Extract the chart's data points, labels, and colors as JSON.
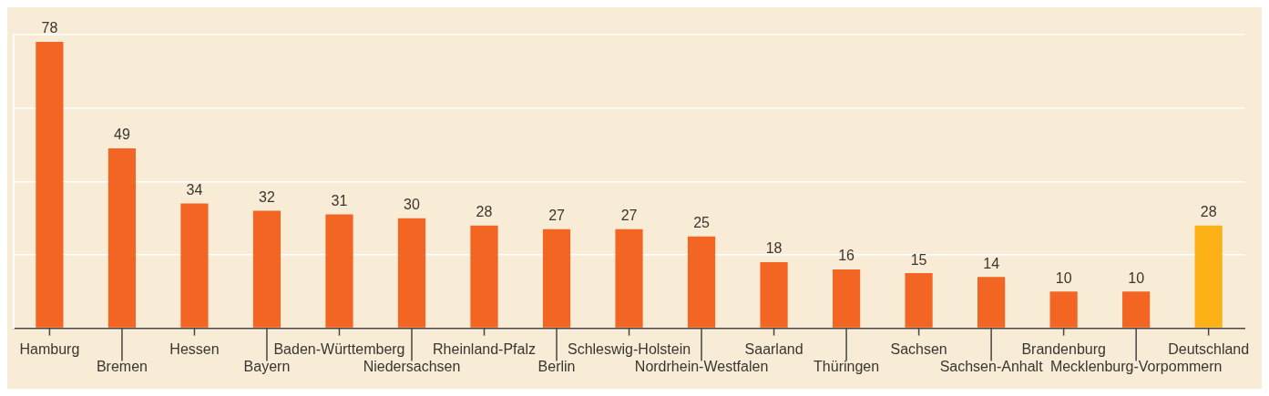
{
  "chart_data": {
    "type": "bar",
    "categories": [
      "Hamburg",
      "Bremen",
      "Hessen",
      "Bayern",
      "Baden-Württemberg",
      "Niedersachsen",
      "Rheinland-Pfalz",
      "Berlin",
      "Schleswig-Holstein",
      "Nordrhein-Westfalen",
      "Saarland",
      "Thüringen",
      "Sachsen",
      "Sachsen-Anhalt",
      "Brandenburg",
      "Mecklenburg-Vorpommern",
      "Deutschland"
    ],
    "values": [
      78,
      49,
      34,
      32,
      31,
      30,
      28,
      27,
      27,
      25,
      18,
      16,
      15,
      14,
      10,
      10,
      28
    ],
    "colors": [
      "#f26522",
      "#f26522",
      "#f26522",
      "#f26522",
      "#f26522",
      "#f26522",
      "#f26522",
      "#f26522",
      "#f26522",
      "#f26522",
      "#f26522",
      "#f26522",
      "#f26522",
      "#f26522",
      "#f26522",
      "#f26522",
      "#fbb116"
    ],
    "ylim": [
      0,
      80
    ],
    "yticks": [
      {
        "value": 0,
        "label": null
      },
      {
        "value": 20,
        "label": null
      },
      {
        "value": 40,
        "label": null
      },
      {
        "value": 60,
        "label": null
      },
      {
        "value": 80,
        "label": null
      }
    ],
    "grid": "y",
    "tick_labels": "x",
    "data_labels": true,
    "legend": false
  }
}
